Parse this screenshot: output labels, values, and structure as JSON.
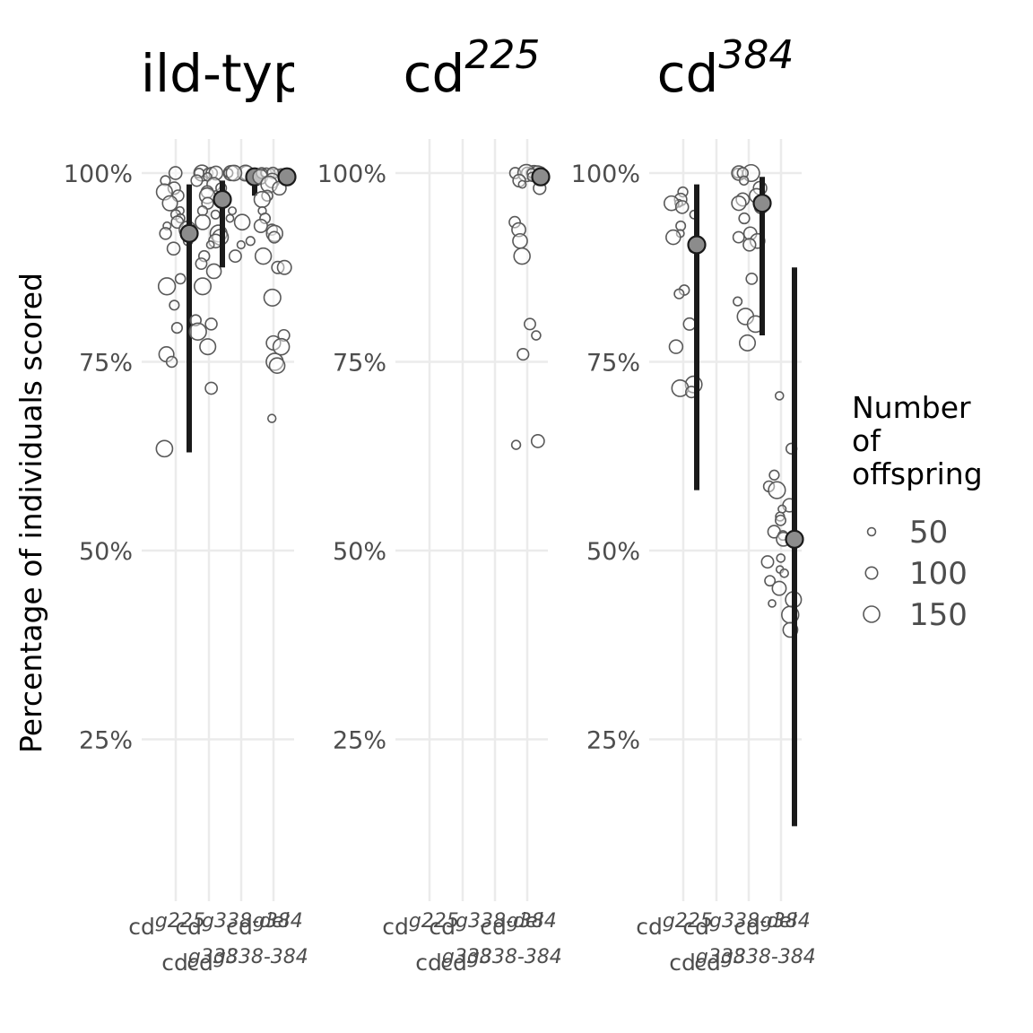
{
  "chart_data": {
    "type": "scatter",
    "ylabel": "Percentage of individuals scored",
    "ylim": [
      5,
      105
    ],
    "y_ticks": [
      25,
      50,
      75,
      100
    ],
    "y_tick_labels": [
      "25%",
      "50%",
      "75%",
      "100%"
    ],
    "grid": true,
    "categories": [
      {
        "main": "cd",
        "sup": "g225"
      },
      {
        "main": "cd",
        "sup": "g338"
      },
      {
        "main": "cd",
        "sup": "g338-del"
      },
      {
        "main": "cd",
        "sup": "g338-384"
      },
      {
        "main": "cd",
        "sup": "g384"
      }
    ],
    "panels": [
      {
        "title_main": "wild-type",
        "title_sup": "",
        "groups": [
          {
            "category": 0,
            "mean": 92,
            "lower": 63,
            "upper": 98.5,
            "points": [
              100,
              99,
              98,
              97.5,
              97,
              96,
              95,
              94.5,
              94,
              93.5,
              93,
              92.5,
              92,
              91,
              90,
              86,
              85,
              82.5,
              79.5,
              76,
              75,
              63.5
            ]
          },
          {
            "category": 1,
            "mean": 96.5,
            "lower": 87.5,
            "upper": 99,
            "points": [
              100,
              100,
              100,
              100,
              100,
              99.5,
              99,
              98.5,
              98,
              97.5,
              97,
              96,
              95,
              94.5,
              93.5,
              92,
              91.5,
              91,
              90.5,
              89,
              88,
              87,
              85,
              80.5,
              80,
              79,
              77,
              71.5
            ]
          },
          {
            "category": 2,
            "mean": 99.5,
            "lower": 97,
            "upper": 100,
            "points": [
              100,
              100,
              100,
              100,
              100,
              100,
              95,
              94,
              93.5,
              91,
              90.5,
              89
            ]
          },
          {
            "category": 4,
            "mean": 99.5,
            "lower": 98.5,
            "upper": 100,
            "points": [
              100,
              100,
              100,
              100,
              100,
              100,
              100,
              99.5,
              99,
              98.5,
              98,
              97,
              96.5,
              95,
              94,
              93,
              92.5,
              92,
              91.5,
              89,
              87.5,
              87.5,
              83.5,
              78.5,
              77.5,
              77,
              75,
              74.5,
              67.5
            ]
          }
        ]
      },
      {
        "title_main": "cd",
        "title_sup": "225",
        "groups": [
          {
            "category": 3,
            "mean": 99.5,
            "lower": 99,
            "upper": 100,
            "points": [
              100,
              100,
              100,
              100,
              100,
              100,
              100,
              100,
              99.5,
              99,
              98.5,
              98,
              93.5,
              92.5,
              91,
              89,
              80,
              78.5,
              76,
              64.5,
              64
            ]
          }
        ]
      },
      {
        "title_main": "cd",
        "title_sup": "384",
        "groups": [
          {
            "category": 0,
            "mean": 90.5,
            "lower": 58,
            "upper": 98.5,
            "points": [
              97.5,
              96.5,
              96,
              96,
              95.5,
              94.5,
              93,
              92,
              91.5,
              90,
              84.5,
              84,
              80,
              77,
              72,
              71.5,
              71
            ]
          },
          {
            "category": 2,
            "mean": 96,
            "lower": 78.5,
            "upper": 99.5,
            "points": [
              100,
              100,
              100,
              100,
              99,
              98,
              97,
              96.5,
              96,
              95.5,
              94,
              92,
              91.5,
              91,
              90.5,
              86,
              83,
              81,
              80,
              77.5
            ]
          },
          {
            "category": 3,
            "mean": 51.5,
            "lower": 13.5,
            "upper": 87.5,
            "points": [
              70.5,
              63.5,
              60,
              58.5,
              58,
              56,
              55.5,
              54.5,
              54,
              52.5,
              52,
              51.5,
              49,
              48.5,
              47.5,
              47,
              46,
              45,
              43.5,
              43,
              41.5,
              39.5
            ]
          }
        ]
      }
    ],
    "legend": {
      "title": "Number\nof\noffspring",
      "position": "right",
      "entries": [
        {
          "label": "50",
          "size": 50
        },
        {
          "label": "100",
          "size": 100
        },
        {
          "label": "150",
          "size": 150
        }
      ]
    }
  }
}
